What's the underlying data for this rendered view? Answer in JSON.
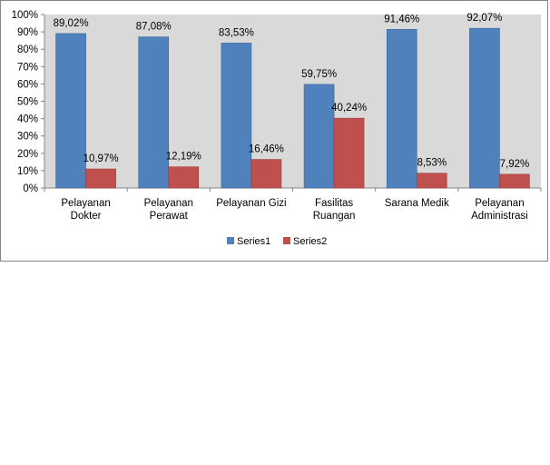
{
  "chart_data": {
    "type": "bar",
    "categories": [
      [
        "Pelayanan",
        "Dokter"
      ],
      [
        "Pelayanan",
        "Perawat"
      ],
      [
        "Pelayanan Gizi"
      ],
      [
        "Fasilitas",
        "Ruangan"
      ],
      [
        "Sarana Medik"
      ],
      [
        "Pelayanan",
        "Administrasi"
      ]
    ],
    "series": [
      {
        "name": "Series1",
        "color": "#4F81BD",
        "values": [
          89.02,
          87.08,
          83.53,
          59.75,
          91.46,
          92.07
        ],
        "labels": [
          "89,02%",
          "87,08%",
          "83,53%",
          "59,75%",
          "91,46%",
          "92,07%"
        ]
      },
      {
        "name": "Series2",
        "color": "#C0504D",
        "values": [
          10.97,
          12.19,
          16.46,
          40.24,
          8.53,
          7.92
        ],
        "labels": [
          "10,97%",
          "12,19%",
          "16,46%",
          "40,24%",
          "8,53%",
          "7,92%"
        ]
      }
    ],
    "ylim": [
      0,
      100
    ],
    "yticks": [
      "0%",
      "10%",
      "20%",
      "30%",
      "40%",
      "50%",
      "60%",
      "70%",
      "80%",
      "90%",
      "100%"
    ],
    "grid": false,
    "plot_background": "#D9D9D9",
    "legend": "bottom"
  }
}
